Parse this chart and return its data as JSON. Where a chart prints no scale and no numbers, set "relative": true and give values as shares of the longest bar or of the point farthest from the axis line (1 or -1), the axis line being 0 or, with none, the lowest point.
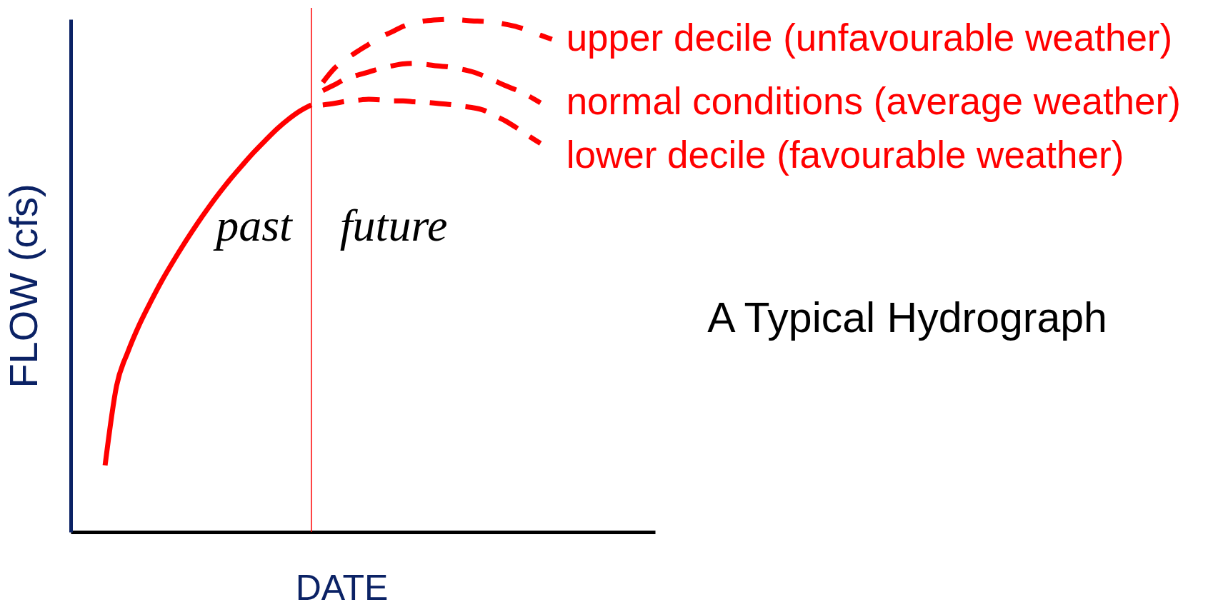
{
  "chart_data": {
    "type": "line",
    "title": "A Typical Hydrograph",
    "xlabel": "DATE",
    "ylabel": "FLOW (cfs)",
    "relative": true,
    "categories": [
      null,
      null,
      null,
      null,
      null,
      null,
      null,
      null,
      null,
      null,
      null,
      null,
      null,
      null,
      null,
      null,
      null,
      null,
      null,
      null,
      null,
      null,
      null,
      null,
      null,
      null,
      null,
      null,
      null,
      null,
      null,
      null,
      null,
      null,
      null,
      null,
      null,
      null,
      null,
      null,
      null,
      null,
      null,
      null,
      null,
      null,
      null,
      null,
      null,
      null,
      null,
      null
    ],
    "series": [
      {
        "color": "#ff0000",
        "line_style": "solid",
        "values": [
          null,
          null,
          null,
          0.13,
          0.285,
          0.352,
          0.405,
          0.45,
          0.492,
          0.53,
          0.566,
          0.6,
          0.632,
          0.662,
          0.69,
          0.716,
          0.741,
          0.764,
          0.786,
          0.805,
          0.821,
          0.833,
          null,
          null,
          null,
          null,
          null,
          null,
          null,
          null,
          null,
          null,
          null,
          null,
          null,
          null,
          null,
          null,
          null,
          null,
          null,
          null,
          null,
          null,
          null,
          null,
          null,
          null,
          null,
          null,
          null,
          null
        ]
      },
      {
        "name": "upper decile (unfavourable weather)",
        "color": "#ff0000",
        "line_style": "dashed",
        "values": [
          null,
          null,
          null,
          null,
          null,
          null,
          null,
          null,
          null,
          null,
          null,
          null,
          null,
          null,
          null,
          null,
          null,
          null,
          null,
          null,
          null,
          null,
          0.877,
          0.904,
          0.922,
          0.937,
          0.951,
          0.965,
          0.975,
          0.986,
          0.993,
          0.997,
          0.999,
          1.0,
          0.999,
          0.997,
          0.996,
          0.994,
          0.99,
          0.985,
          0.978,
          0.969,
          0.961,
          null,
          null,
          null,
          null,
          null,
          null,
          null,
          null,
          null
        ]
      },
      {
        "name": "normal conditions (average weather)",
        "color": "#ff0000",
        "line_style": "dashed",
        "values": [
          null,
          null,
          null,
          null,
          null,
          null,
          null,
          null,
          null,
          null,
          null,
          null,
          null,
          null,
          null,
          null,
          null,
          null,
          null,
          null,
          null,
          null,
          0.861,
          0.872,
          0.884,
          0.891,
          0.897,
          0.904,
          0.909,
          0.913,
          0.914,
          0.912,
          0.909,
          0.907,
          0.903,
          0.898,
          0.89,
          0.88,
          0.87,
          0.861,
          0.85,
          0.837,
          null,
          null,
          null,
          null,
          null,
          null,
          null,
          null,
          null,
          null
        ]
      },
      {
        "name": "lower decile (favourable weather)",
        "color": "#ff0000",
        "line_style": "dashed",
        "values": [
          null,
          null,
          null,
          null,
          null,
          null,
          null,
          null,
          null,
          null,
          null,
          null,
          null,
          null,
          null,
          null,
          null,
          null,
          null,
          null,
          null,
          null,
          0.833,
          0.836,
          0.84,
          0.842,
          0.844,
          0.843,
          0.841,
          0.841,
          0.839,
          0.838,
          0.836,
          0.834,
          0.831,
          0.828,
          0.823,
          0.812,
          0.801,
          0.787,
          0.772,
          0.758,
          null,
          null,
          null,
          null,
          null,
          null,
          null,
          null,
          null,
          null
        ]
      }
    ],
    "annotations": [
      "past",
      "future"
    ]
  }
}
